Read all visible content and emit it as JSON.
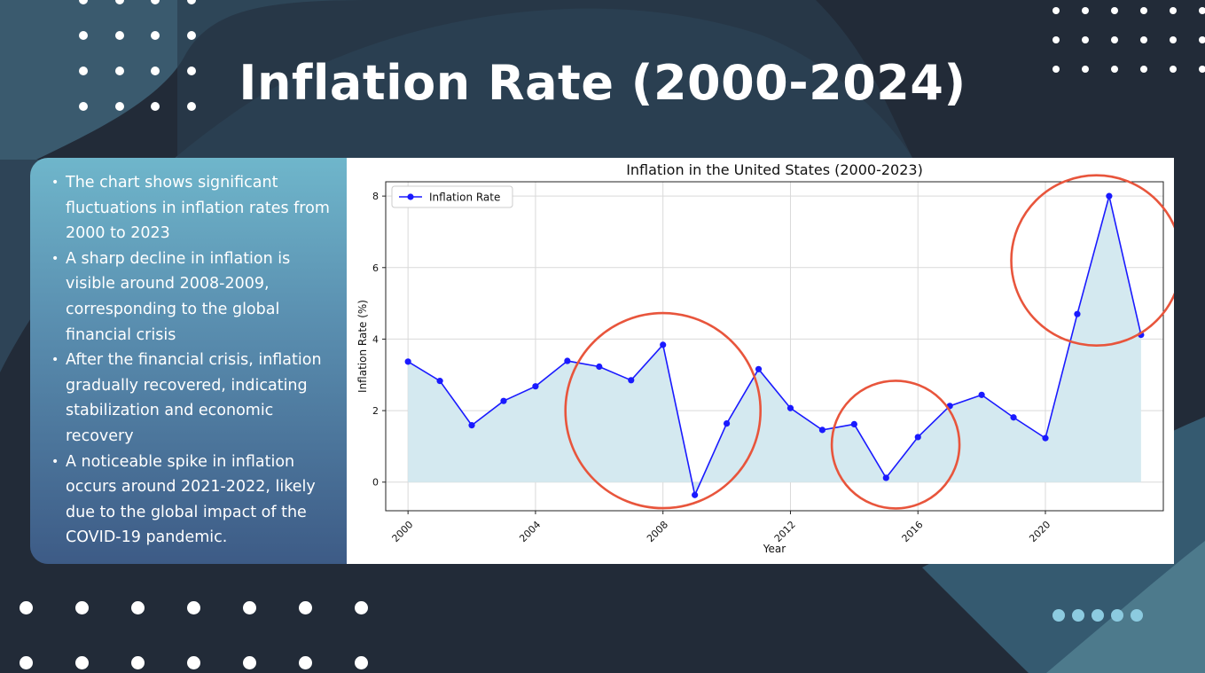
{
  "slide": {
    "title": "Inflation Rate (2000-2024)",
    "bullets": [
      "The chart shows significant fluctuations in inflation rates from 2000 to 2023",
      "A sharp decline in inflation is visible around 2008-2009, corresponding to the global financial crisis",
      "After the financial crisis, inflation gradually recovered, indicating stabilization and economic recovery",
      "A noticeable spike in inflation occurs around 2021-2022, likely due to the global impact of the COVID-19 pandemic."
    ]
  },
  "colors": {
    "background": "#222b38",
    "line": "#1a1aff",
    "fill": "#d4e9f0",
    "highlight_circle": "#e8553c",
    "accent_dots": "#8ccbe0"
  },
  "chart_data": {
    "type": "line",
    "title": "Inflation in the United States (2000-2023)",
    "xlabel": "Year",
    "ylabel": "Inflation Rate (%)",
    "xlim": [
      1999.3,
      2023.7
    ],
    "ylim": [
      -0.8,
      8.4
    ],
    "xticks": [
      2000,
      2004,
      2008,
      2012,
      2016,
      2020
    ],
    "yticks": [
      0,
      2,
      4,
      6,
      8
    ],
    "grid": true,
    "legend_position": "top-left",
    "area_fill": true,
    "series": [
      {
        "name": "Inflation Rate",
        "x": [
          2000,
          2001,
          2002,
          2003,
          2004,
          2005,
          2006,
          2007,
          2008,
          2009,
          2010,
          2011,
          2012,
          2013,
          2014,
          2015,
          2016,
          2017,
          2018,
          2019,
          2020,
          2021,
          2022,
          2023
        ],
        "y": [
          3.37,
          2.83,
          1.59,
          2.27,
          2.68,
          3.39,
          3.23,
          2.85,
          3.84,
          -0.36,
          1.64,
          3.16,
          2.07,
          1.46,
          1.62,
          0.12,
          1.26,
          2.13,
          2.44,
          1.81,
          1.23,
          4.7,
          8.0,
          4.12
        ]
      }
    ],
    "annotations": [
      {
        "shape": "circle",
        "center": [
          2008,
          2.0
        ],
        "note": "highlight 2008-2009 dip"
      },
      {
        "shape": "circle",
        "center": [
          2015.3,
          1.05
        ],
        "note": "highlight 2015 low"
      },
      {
        "shape": "circle",
        "center": [
          2021.6,
          6.2
        ],
        "note": "highlight 2021-2022 spike"
      }
    ]
  }
}
